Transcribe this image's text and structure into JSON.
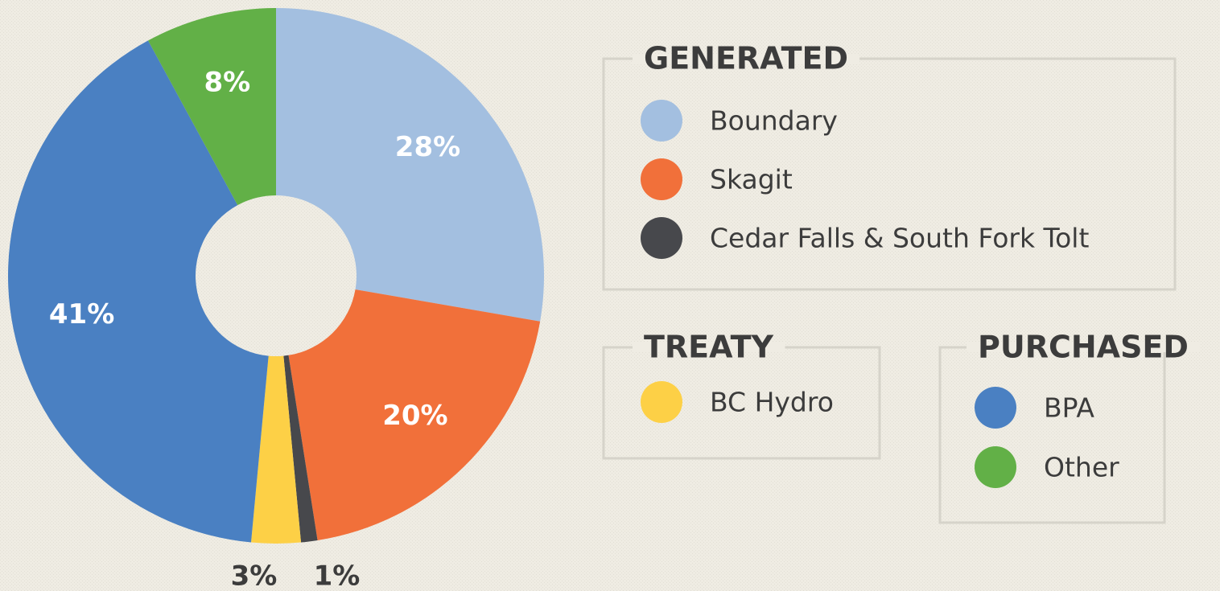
{
  "chart_data": {
    "type": "pie",
    "donut": true,
    "groups": [
      {
        "title": "GENERATED",
        "entries": [
          {
            "name": "Boundary",
            "color": "#a3bfe0",
            "value": 28,
            "value_label": "28%"
          },
          {
            "name": "Skagit",
            "color": "#f1703a",
            "value": 20,
            "value_label": "20%"
          },
          {
            "name": "Cedar Falls & South Fork Tolt",
            "color": "#47484c",
            "value": 1,
            "value_label": "1%"
          }
        ]
      },
      {
        "title": "TREATY",
        "entries": [
          {
            "name": "BC Hydro",
            "color": "#fdd046",
            "value": 3,
            "value_label": "3%"
          }
        ]
      },
      {
        "title": "PURCHASED",
        "entries": [
          {
            "name": "BPA",
            "color": "#4a80c2",
            "value": 41,
            "value_label": "41%"
          },
          {
            "name": "Other",
            "color": "#62b047",
            "value": 8,
            "value_label": "8%"
          }
        ]
      }
    ]
  }
}
